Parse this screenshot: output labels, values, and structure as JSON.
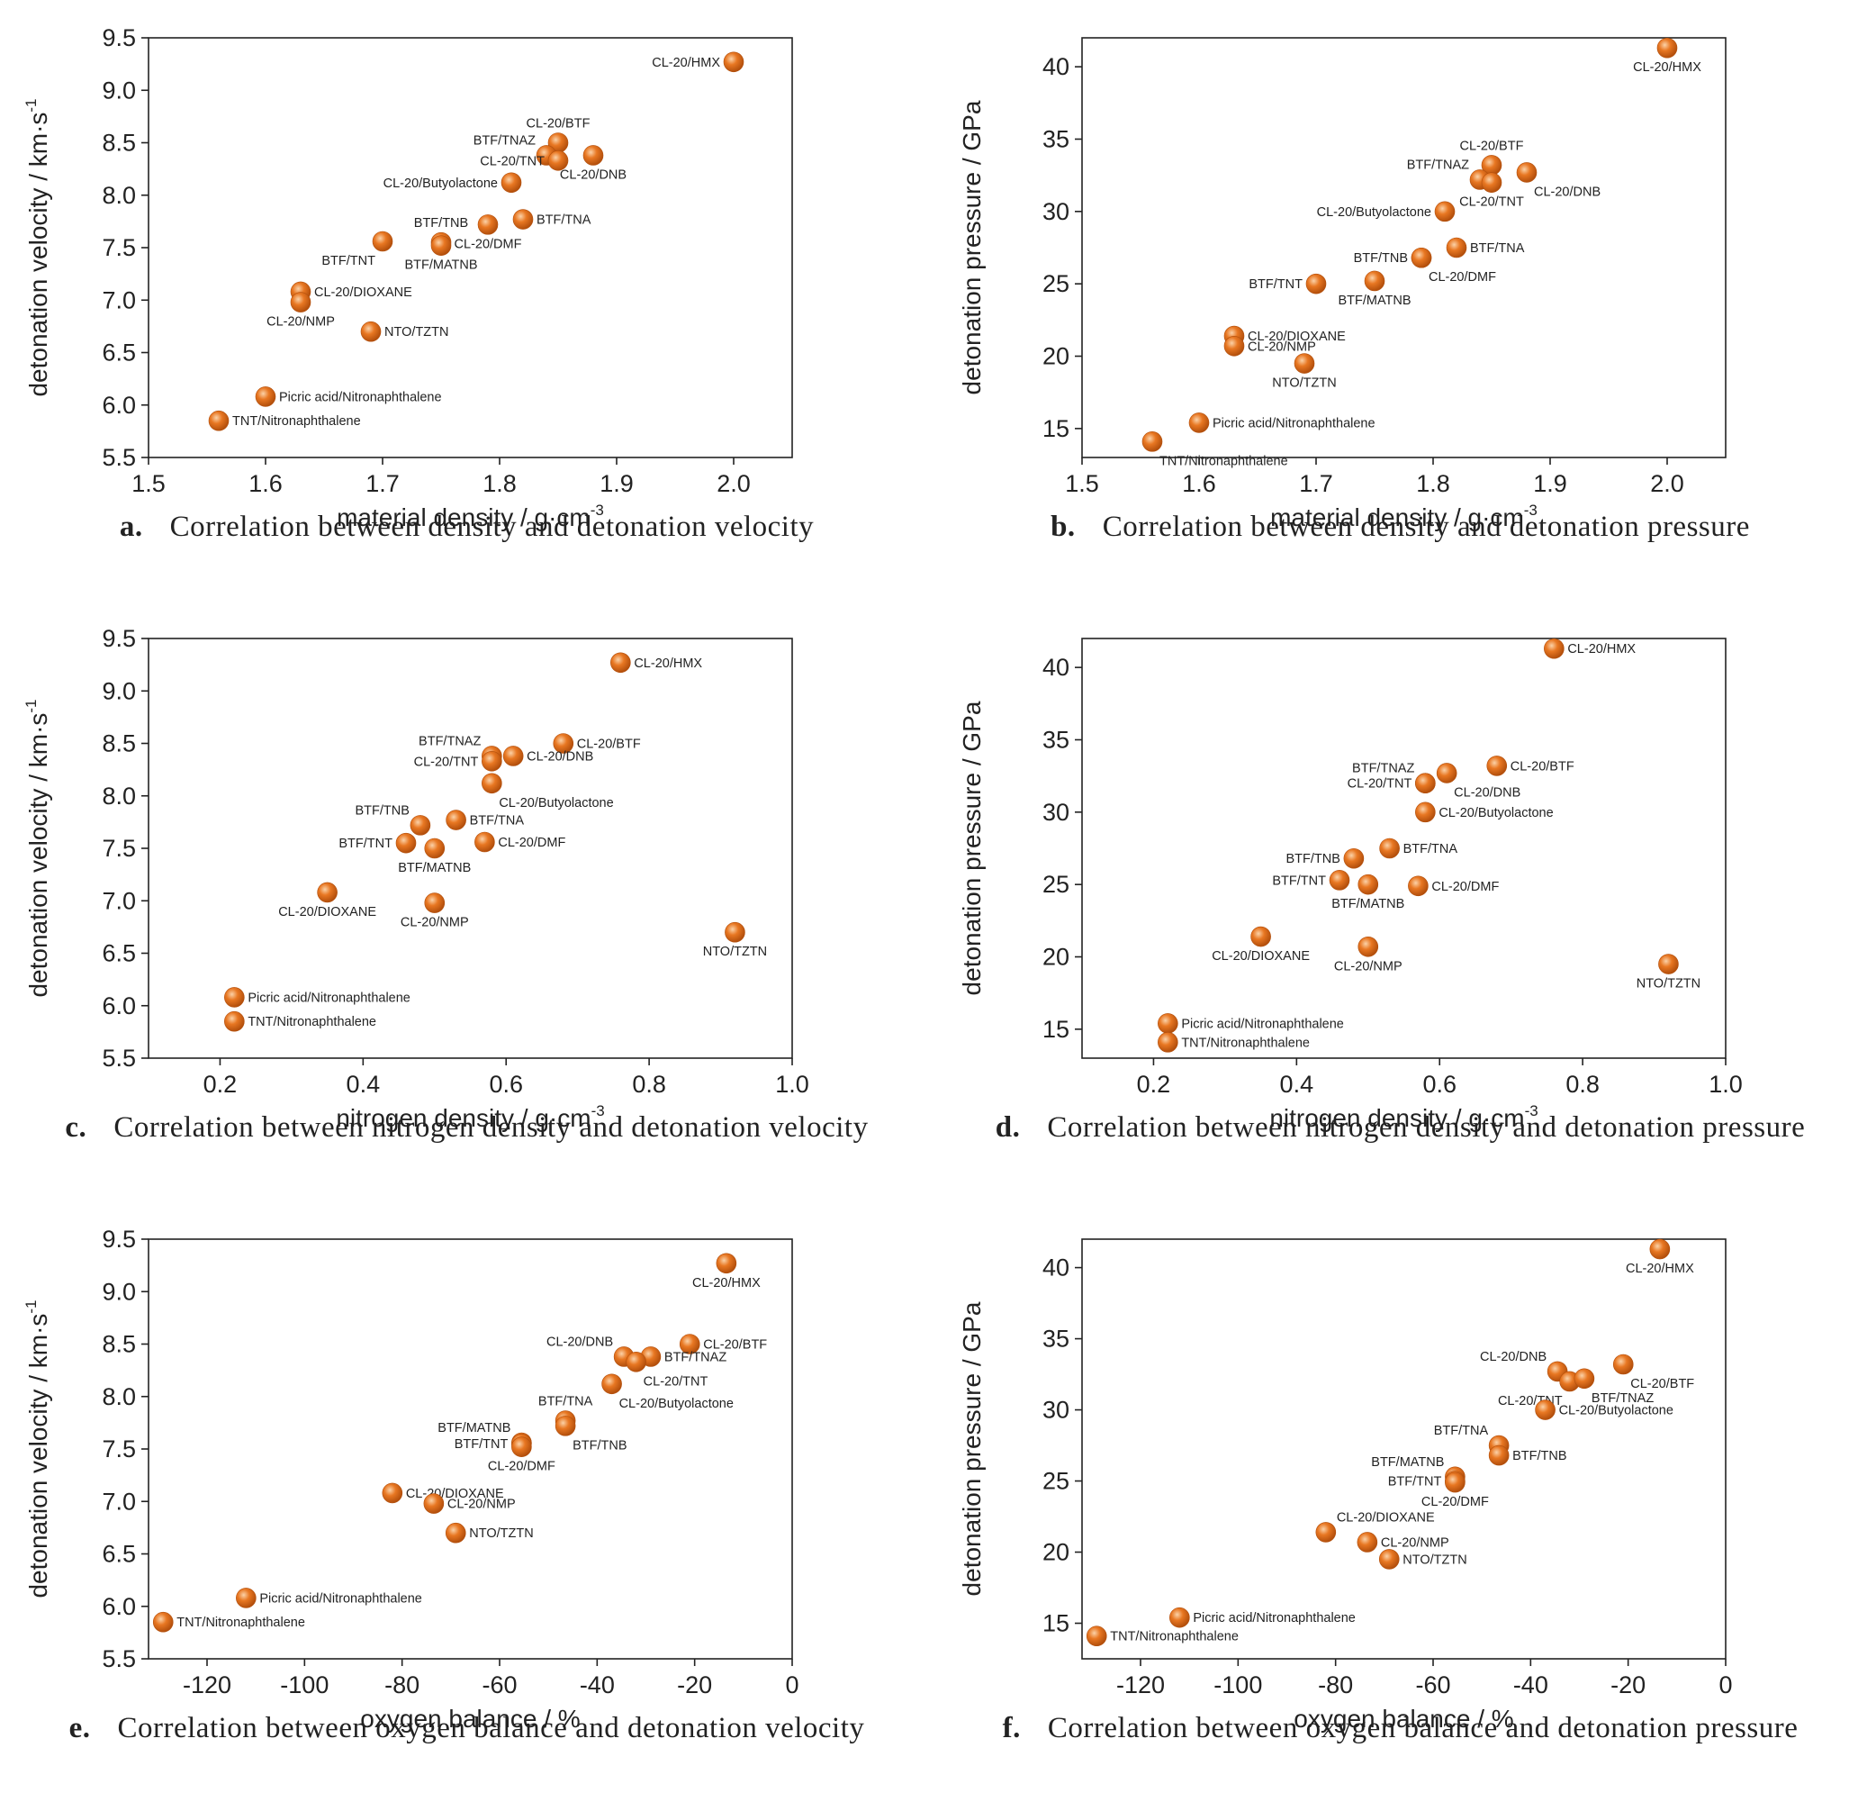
{
  "colors": {
    "marker": "#e87722",
    "marker_highlight": "#fbd2a8",
    "marker_edge": "#b34f0c",
    "axis": "#222222"
  },
  "chart_data": [
    {
      "id": "a",
      "type": "scatter",
      "caption_letter": "a.",
      "caption": "Correlation between density and detonation velocity",
      "xlabel": "material  density / g·cm",
      "xlabel_sup": "-3",
      "ylabel": "detonation velocity / km·s",
      "ylabel_sup": "-1",
      "xlim": [
        1.5,
        2.05
      ],
      "ylim": [
        5.5,
        9.5
      ],
      "xticks": [
        1.5,
        1.6,
        1.7,
        1.8,
        1.9,
        2.0
      ],
      "xtick_labels": [
        "1.5",
        "1.6",
        "1.7",
        "1.8",
        "1.9",
        "2.0"
      ],
      "yticks": [
        5.5,
        6.0,
        6.5,
        7.0,
        7.5,
        8.0,
        8.5,
        9.0,
        9.5
      ],
      "ytick_labels": [
        "5.5",
        "6.0",
        "6.5",
        "7.0",
        "7.5",
        "8.0",
        "8.5",
        "9.0",
        "9.5"
      ],
      "points": [
        {
          "label": "CL-20/HMX",
          "x": 2.0,
          "y": 9.27,
          "pos": "left"
        },
        {
          "label": "CL-20/BTF",
          "x": 1.85,
          "y": 8.5,
          "pos": "above"
        },
        {
          "label": "BTF/TNAZ",
          "x": 1.84,
          "y": 8.38,
          "pos": "above-left"
        },
        {
          "label": "CL-20/TNT",
          "x": 1.85,
          "y": 8.33,
          "pos": "left"
        },
        {
          "label": "CL-20/DNB",
          "x": 1.88,
          "y": 8.38,
          "pos": "below"
        },
        {
          "label": "CL-20/Butyolactone",
          "x": 1.81,
          "y": 8.12,
          "pos": "left"
        },
        {
          "label": "CL-20/DMF",
          "x": 1.79,
          "y": 7.72,
          "pos": "below"
        },
        {
          "label": "BTF/TNA",
          "x": 1.82,
          "y": 7.77,
          "pos": "right"
        },
        {
          "label": "BTF/TNB",
          "x": 1.75,
          "y": 7.55,
          "pos": "above"
        },
        {
          "label": "BTF/MATNB",
          "x": 1.75,
          "y": 7.52,
          "pos": "below"
        },
        {
          "label": "BTF/TNT",
          "x": 1.7,
          "y": 7.56,
          "pos": "below-left"
        },
        {
          "label": "CL-20/DIOXANE",
          "x": 1.63,
          "y": 7.08,
          "pos": "right"
        },
        {
          "label": "CL-20/NMP",
          "x": 1.63,
          "y": 6.98,
          "pos": "below"
        },
        {
          "label": "NTO/TZTN",
          "x": 1.69,
          "y": 6.7,
          "pos": "right"
        },
        {
          "label": "Picric acid/Nitronaphthalene",
          "x": 1.6,
          "y": 6.08,
          "pos": "right"
        },
        {
          "label": "TNT/Nitronaphthalene",
          "x": 1.56,
          "y": 5.85,
          "pos": "right"
        }
      ]
    },
    {
      "id": "b",
      "type": "scatter",
      "caption_letter": "b.",
      "caption": "Correlation between density and detonation pressure",
      "xlabel": "material density / g·cm",
      "xlabel_sup": "-3",
      "ylabel": "detonation pressure / GPa",
      "ylabel_sup": "",
      "xlim": [
        1.5,
        2.05
      ],
      "ylim": [
        13,
        42
      ],
      "xticks": [
        1.5,
        1.6,
        1.7,
        1.8,
        1.9,
        2.0
      ],
      "xtick_labels": [
        "1.5",
        "1.6",
        "1.7",
        "1.8",
        "1.9",
        "2.0"
      ],
      "yticks": [
        15,
        20,
        25,
        30,
        35,
        40
      ],
      "ytick_labels": [
        "15",
        "20",
        "25",
        "30",
        "35",
        "40"
      ],
      "points": [
        {
          "label": "CL-20/HMX",
          "x": 2.0,
          "y": 41.3,
          "pos": "below"
        },
        {
          "label": "CL-20/BTF",
          "x": 1.85,
          "y": 33.2,
          "pos": "above"
        },
        {
          "label": "BTF/TNAZ",
          "x": 1.84,
          "y": 32.2,
          "pos": "above-left"
        },
        {
          "label": "CL-20/TNT",
          "x": 1.85,
          "y": 32.0,
          "pos": "below"
        },
        {
          "label": "CL-20/DNB",
          "x": 1.88,
          "y": 32.7,
          "pos": "below-right"
        },
        {
          "label": "CL-20/Butyolactone",
          "x": 1.81,
          "y": 30.0,
          "pos": "left"
        },
        {
          "label": "BTF/TNA",
          "x": 1.82,
          "y": 27.5,
          "pos": "right"
        },
        {
          "label": "BTF/TNB",
          "x": 1.79,
          "y": 26.8,
          "pos": "left"
        },
        {
          "label": "CL-20/DMF",
          "x": 1.79,
          "y": 26.8,
          "pos": "below-right"
        },
        {
          "label": "BTF/TNT",
          "x": 1.7,
          "y": 25.0,
          "pos": "left"
        },
        {
          "label": "BTF/MATNB",
          "x": 1.75,
          "y": 25.2,
          "pos": "below"
        },
        {
          "label": "CL-20/DIOXANE",
          "x": 1.63,
          "y": 21.4,
          "pos": "right"
        },
        {
          "label": "CL-20/NMP",
          "x": 1.63,
          "y": 20.7,
          "pos": "right"
        },
        {
          "label": "NTO/TZTN",
          "x": 1.69,
          "y": 19.5,
          "pos": "below"
        },
        {
          "label": "Picric acid/Nitronaphthalene",
          "x": 1.6,
          "y": 15.4,
          "pos": "right"
        },
        {
          "label": "TNT/Nitronaphthalene",
          "x": 1.56,
          "y": 14.1,
          "pos": "below-right"
        }
      ]
    },
    {
      "id": "c",
      "type": "scatter",
      "caption_letter": "c.",
      "caption": "Correlation between nitrogen density and detonation velocity",
      "xlabel": "nitrogen density / g·cm",
      "xlabel_sup": "-3",
      "ylabel": "detonation velocity / km·s",
      "ylabel_sup": "-1",
      "xlim": [
        0.1,
        1.0
      ],
      "ylim": [
        5.5,
        9.5
      ],
      "xticks": [
        0.2,
        0.4,
        0.6,
        0.8,
        1.0
      ],
      "xtick_labels": [
        "0.2",
        "0.4",
        "0.6",
        "0.8",
        "1.0"
      ],
      "yticks": [
        5.5,
        6.0,
        6.5,
        7.0,
        7.5,
        8.0,
        8.5,
        9.0,
        9.5
      ],
      "ytick_labels": [
        "5.5",
        "6.0",
        "6.5",
        "7.0",
        "7.5",
        "8.0",
        "8.5",
        "9.0",
        "9.5"
      ],
      "points": [
        {
          "label": "CL-20/HMX",
          "x": 0.76,
          "y": 9.27,
          "pos": "right"
        },
        {
          "label": "CL-20/BTF",
          "x": 0.68,
          "y": 8.5,
          "pos": "right"
        },
        {
          "label": "BTF/TNAZ",
          "x": 0.58,
          "y": 8.38,
          "pos": "above-left"
        },
        {
          "label": "CL-20/TNT",
          "x": 0.58,
          "y": 8.33,
          "pos": "left"
        },
        {
          "label": "CL-20/DNB",
          "x": 0.61,
          "y": 8.38,
          "pos": "right"
        },
        {
          "label": "CL-20/Butyolactone",
          "x": 0.58,
          "y": 8.12,
          "pos": "below-right"
        },
        {
          "label": "BTF/TNB",
          "x": 0.48,
          "y": 7.72,
          "pos": "above-left"
        },
        {
          "label": "BTF/TNA",
          "x": 0.53,
          "y": 7.77,
          "pos": "right"
        },
        {
          "label": "BTF/TNT",
          "x": 0.46,
          "y": 7.55,
          "pos": "left"
        },
        {
          "label": "BTF/MATNB",
          "x": 0.5,
          "y": 7.5,
          "pos": "below"
        },
        {
          "label": "CL-20/DMF",
          "x": 0.57,
          "y": 7.56,
          "pos": "right"
        },
        {
          "label": "CL-20/DIOXANE",
          "x": 0.35,
          "y": 7.08,
          "pos": "below"
        },
        {
          "label": "CL-20/NMP",
          "x": 0.5,
          "y": 6.98,
          "pos": "below"
        },
        {
          "label": "NTO/TZTN",
          "x": 0.92,
          "y": 6.7,
          "pos": "below"
        },
        {
          "label": "Picric acid/Nitronaphthalene",
          "x": 0.22,
          "y": 6.08,
          "pos": "right"
        },
        {
          "label": "TNT/Nitronaphthalene",
          "x": 0.22,
          "y": 5.85,
          "pos": "right"
        }
      ]
    },
    {
      "id": "d",
      "type": "scatter",
      "caption_letter": "d.",
      "caption": "Correlation between nitrogen density and detonation pressure",
      "xlabel": "nitrogen  density / g·cm",
      "xlabel_sup": "-3",
      "ylabel": "detonation pressure / GPa",
      "ylabel_sup": "",
      "xlim": [
        0.1,
        1.0
      ],
      "ylim": [
        13,
        42
      ],
      "xticks": [
        0.2,
        0.4,
        0.6,
        0.8,
        1.0
      ],
      "xtick_labels": [
        "0.2",
        "0.4",
        "0.6",
        "0.8",
        "1.0"
      ],
      "yticks": [
        15,
        20,
        25,
        30,
        35,
        40
      ],
      "ytick_labels": [
        "15",
        "20",
        "25",
        "30",
        "35",
        "40"
      ],
      "points": [
        {
          "label": "CL-20/HMX",
          "x": 0.76,
          "y": 41.3,
          "pos": "right"
        },
        {
          "label": "CL-20/BTF",
          "x": 0.68,
          "y": 33.2,
          "pos": "right"
        },
        {
          "label": "BTF/TNAZ",
          "x": 0.58,
          "y": 32.0,
          "pos": "above-left"
        },
        {
          "label": "CL-20/TNT",
          "x": 0.58,
          "y": 32.0,
          "pos": "left"
        },
        {
          "label": "CL-20/DNB",
          "x": 0.61,
          "y": 32.7,
          "pos": "below-right"
        },
        {
          "label": "CL-20/Butyolactone",
          "x": 0.58,
          "y": 30.0,
          "pos": "right"
        },
        {
          "label": "BTF/TNB",
          "x": 0.48,
          "y": 26.8,
          "pos": "left"
        },
        {
          "label": "BTF/TNA",
          "x": 0.53,
          "y": 27.5,
          "pos": "right"
        },
        {
          "label": "BTF/TNT",
          "x": 0.46,
          "y": 25.3,
          "pos": "left"
        },
        {
          "label": "BTF/MATNB",
          "x": 0.5,
          "y": 25.0,
          "pos": "below"
        },
        {
          "label": "CL-20/DMF",
          "x": 0.57,
          "y": 24.9,
          "pos": "right"
        },
        {
          "label": "CL-20/DIOXANE",
          "x": 0.35,
          "y": 21.4,
          "pos": "below"
        },
        {
          "label": "CL-20/NMP",
          "x": 0.5,
          "y": 20.7,
          "pos": "below"
        },
        {
          "label": "NTO/TZTN",
          "x": 0.92,
          "y": 19.5,
          "pos": "below"
        },
        {
          "label": "Picric acid/Nitronaphthalene",
          "x": 0.22,
          "y": 15.4,
          "pos": "right"
        },
        {
          "label": "TNT/Nitronaphthalene",
          "x": 0.22,
          "y": 14.1,
          "pos": "right"
        }
      ]
    },
    {
      "id": "e",
      "type": "scatter",
      "caption_letter": "e.",
      "caption": "Correlation between oxygen balance and detonation velocity",
      "xlabel": "oxygen balance / %",
      "xlabel_sup": "",
      "ylabel": "detonation velocity / km·s",
      "ylabel_sup": "-1",
      "xlim": [
        -132,
        0
      ],
      "ylim": [
        5.5,
        9.5
      ],
      "xticks": [
        -120,
        -100,
        -80,
        -60,
        -40,
        -20,
        0
      ],
      "xtick_labels": [
        "-120",
        "-100",
        "-80",
        "-60",
        "-40",
        "-20",
        "0"
      ],
      "yticks": [
        5.5,
        6.0,
        6.5,
        7.0,
        7.5,
        8.0,
        8.5,
        9.0,
        9.5
      ],
      "ytick_labels": [
        "5.5",
        "6.0",
        "6.5",
        "7.0",
        "7.5",
        "8.0",
        "8.5",
        "9.0",
        "9.5"
      ],
      "points": [
        {
          "label": "CL-20/HMX",
          "x": -13.5,
          "y": 9.27,
          "pos": "below"
        },
        {
          "label": "CL-20/BTF",
          "x": -21,
          "y": 8.5,
          "pos": "right"
        },
        {
          "label": "CL-20/DNB",
          "x": -34.5,
          "y": 8.38,
          "pos": "above-left"
        },
        {
          "label": "BTF/TNAZ",
          "x": -29,
          "y": 8.38,
          "pos": "right"
        },
        {
          "label": "CL-20/TNT",
          "x": -32,
          "y": 8.33,
          "pos": "below-right"
        },
        {
          "label": "CL-20/Butyolactone",
          "x": -37,
          "y": 8.12,
          "pos": "below-right"
        },
        {
          "label": "BTF/TNA",
          "x": -46.5,
          "y": 7.77,
          "pos": "above"
        },
        {
          "label": "BTF/TNB",
          "x": -46.5,
          "y": 7.72,
          "pos": "below-right"
        },
        {
          "label": "BTF/MATNB",
          "x": -55.5,
          "y": 7.56,
          "pos": "above-left"
        },
        {
          "label": "BTF/TNT",
          "x": -55.5,
          "y": 7.55,
          "pos": "left"
        },
        {
          "label": "CL-20/DMF",
          "x": -55.5,
          "y": 7.52,
          "pos": "below"
        },
        {
          "label": "CL-20/DIOXANE",
          "x": -82,
          "y": 7.08,
          "pos": "right"
        },
        {
          "label": "CL-20/NMP",
          "x": -73.5,
          "y": 6.98,
          "pos": "right"
        },
        {
          "label": "NTO/TZTN",
          "x": -69,
          "y": 6.7,
          "pos": "right"
        },
        {
          "label": "Picric acid/Nitronaphthalene",
          "x": -112,
          "y": 6.08,
          "pos": "right"
        },
        {
          "label": "TNT/Nitronaphthalene",
          "x": -129,
          "y": 5.85,
          "pos": "right"
        }
      ]
    },
    {
      "id": "f",
      "type": "scatter",
      "caption_letter": "f.",
      "caption": "Correlation between oxygen balance and detonation pressure",
      "xlabel": "oxygen balance / %",
      "xlabel_sup": "",
      "ylabel": "detonation pressure / GPa",
      "ylabel_sup": "",
      "xlim": [
        -132,
        0
      ],
      "ylim": [
        12.5,
        42
      ],
      "xticks": [
        -120,
        -100,
        -80,
        -60,
        -40,
        -20,
        0
      ],
      "xtick_labels": [
        "-120",
        "-100",
        "-80",
        "-60",
        "-40",
        "-20",
        "0"
      ],
      "yticks": [
        15,
        20,
        25,
        30,
        35,
        40
      ],
      "ytick_labels": [
        "15",
        "20",
        "25",
        "30",
        "35",
        "40"
      ],
      "points": [
        {
          "label": "CL-20/HMX",
          "x": -13.5,
          "y": 41.3,
          "pos": "below"
        },
        {
          "label": "CL-20/DNB",
          "x": -34.5,
          "y": 32.7,
          "pos": "above-left"
        },
        {
          "label": "CL-20/BTF",
          "x": -21,
          "y": 33.2,
          "pos": "below-right"
        },
        {
          "label": "CL-20/TNT",
          "x": -32,
          "y": 32.0,
          "pos": "below-left"
        },
        {
          "label": "BTF/TNAZ",
          "x": -29,
          "y": 32.2,
          "pos": "below-right"
        },
        {
          "label": "CL-20/Butyolactone",
          "x": -37,
          "y": 30.0,
          "pos": "right"
        },
        {
          "label": "BTF/TNA",
          "x": -46.5,
          "y": 27.5,
          "pos": "above-left"
        },
        {
          "label": "BTF/TNB",
          "x": -46.5,
          "y": 26.8,
          "pos": "right"
        },
        {
          "label": "BTF/MATNB",
          "x": -55.5,
          "y": 25.3,
          "pos": "above-left"
        },
        {
          "label": "BTF/TNT",
          "x": -55.5,
          "y": 25.0,
          "pos": "left"
        },
        {
          "label": "CL-20/DMF",
          "x": -55.5,
          "y": 24.9,
          "pos": "below"
        },
        {
          "label": "CL-20/DIOXANE",
          "x": -82,
          "y": 21.4,
          "pos": "above-right"
        },
        {
          "label": "CL-20/NMP",
          "x": -73.5,
          "y": 20.7,
          "pos": "right"
        },
        {
          "label": "NTO/TZTN",
          "x": -69,
          "y": 19.5,
          "pos": "right"
        },
        {
          "label": "Picric acid/Nitronaphthalene",
          "x": -112,
          "y": 15.4,
          "pos": "right"
        },
        {
          "label": "TNT/Nitronaphthalene",
          "x": -129,
          "y": 14.1,
          "pos": "right"
        }
      ]
    }
  ]
}
